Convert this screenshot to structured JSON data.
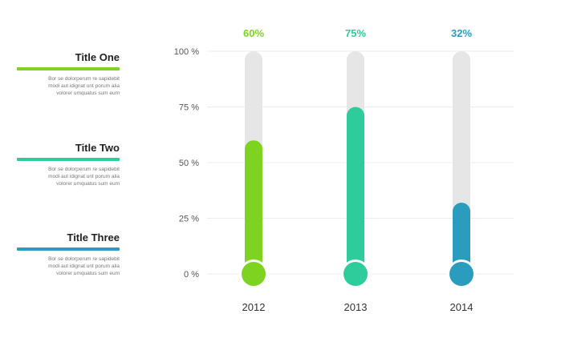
{
  "legend": [
    {
      "title": "Title One",
      "desc": "Bor se dolorperum re sapidebit\nmodi aut idignat unt porum alia\nvolorer umquatus sum eum"
    },
    {
      "title": "Title Two",
      "desc": "Bor se dolorperum re sapidebit\nmodi aut idignat unt porum alia\nvolorer umquatus sum eum"
    },
    {
      "title": "Title Three",
      "desc": "Bor se dolorperum re sapidebit\nmodi aut idignat unt porum alia\nvolorer umquatus sum eum"
    }
  ],
  "colors": {
    "bar1": "#7ed321",
    "bar2": "#2ecc9a",
    "bar3": "#2a9dbf",
    "track": "#e6e6e6",
    "grid": "#ececec"
  },
  "chart_data": {
    "type": "bar",
    "categories": [
      "2012",
      "2013",
      "2014"
    ],
    "values": [
      60,
      75,
      32
    ],
    "value_labels": [
      "60%",
      "75%",
      "32%"
    ],
    "yticks": [
      "0 %",
      "25 %",
      "50 %",
      "75 %",
      "100 %"
    ],
    "ylim": [
      0,
      100
    ],
    "grid": true
  }
}
